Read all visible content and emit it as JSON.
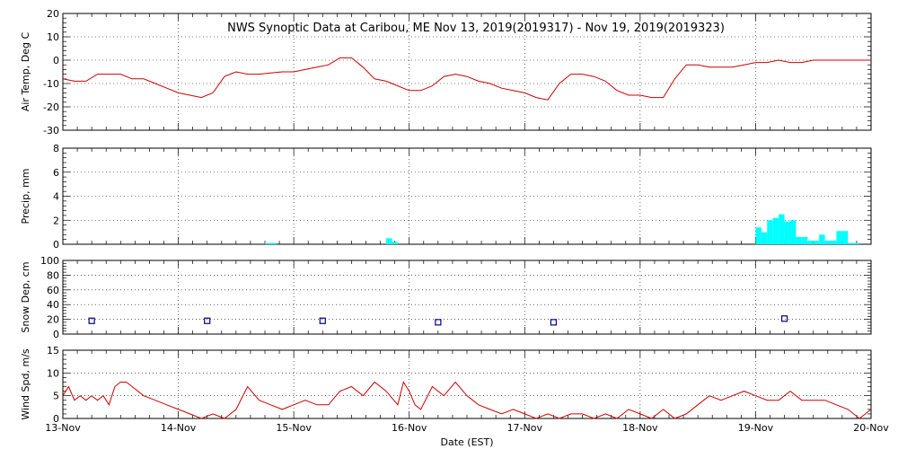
{
  "title": "NWS Synoptic Data at Caribou, ME    Nov 13, 2019(2019317) - Nov 19, 2019(2019323)",
  "xlabel": "Date (EST)",
  "x_ticks": [
    "13-Nov",
    "14-Nov",
    "15-Nov",
    "16-Nov",
    "17-Nov",
    "18-Nov",
    "19-Nov",
    "20-Nov"
  ],
  "colors": {
    "temp": "#cc0000",
    "precip": "#00ffff",
    "snow": "#000080",
    "wind": "#cc0000"
  },
  "chart_data": [
    {
      "type": "line",
      "ylabel": "Air Temp, Deg C",
      "ylim": [
        -30,
        20
      ],
      "y_ticks": [
        "20",
        "10",
        "0",
        "-10",
        "-20",
        "-30"
      ],
      "xlim_days": [
        0,
        7
      ],
      "grid": true,
      "x": [
        0,
        0.1,
        0.2,
        0.3,
        0.4,
        0.5,
        0.6,
        0.7,
        0.8,
        0.9,
        1.0,
        1.1,
        1.2,
        1.3,
        1.4,
        1.5,
        1.6,
        1.7,
        1.8,
        1.9,
        2.0,
        2.1,
        2.2,
        2.3,
        2.4,
        2.5,
        2.6,
        2.7,
        2.8,
        2.9,
        3.0,
        3.1,
        3.2,
        3.3,
        3.4,
        3.5,
        3.6,
        3.7,
        3.8,
        3.9,
        4.0,
        4.1,
        4.2,
        4.3,
        4.4,
        4.5,
        4.6,
        4.7,
        4.8,
        4.9,
        5.0,
        5.1,
        5.2,
        5.3,
        5.4,
        5.5,
        5.6,
        5.7,
        5.8,
        5.9,
        6.0,
        6.1,
        6.2,
        6.3,
        6.4,
        6.5,
        6.6,
        6.7,
        6.8,
        6.9,
        7.0
      ],
      "values": [
        -8,
        -9,
        -9,
        -6,
        -6,
        -6,
        -8,
        -8,
        -10,
        -12,
        -14,
        -15,
        -16,
        -14,
        -7,
        -5,
        -6,
        -6,
        -5.5,
        -5,
        -5,
        -4,
        -3,
        -2,
        1,
        1,
        -3,
        -8,
        -9,
        -11,
        -13,
        -13,
        -11,
        -7,
        -6,
        -7,
        -9,
        -10,
        -12,
        -13,
        -14,
        -16,
        -17,
        -10,
        -6,
        -6,
        -7,
        -9,
        -13,
        -15,
        -15,
        -16,
        -16,
        -8,
        -2,
        -2,
        -3,
        -3,
        -3,
        -2,
        -1,
        -1,
        0,
        -1,
        -1,
        0,
        0,
        0,
        0,
        0,
        0
      ]
    },
    {
      "type": "bar",
      "ylabel": "Precip, mm",
      "ylim": [
        0,
        8
      ],
      "y_ticks": [
        "8",
        "6",
        "4",
        "2",
        "0"
      ],
      "xlim_days": [
        0,
        7
      ],
      "grid": true,
      "x": [
        1.75,
        1.8,
        2.8,
        2.85,
        6.0,
        6.05,
        6.1,
        6.15,
        6.2,
        6.25,
        6.3,
        6.35,
        6.4,
        6.45,
        6.5,
        6.55,
        6.6,
        6.65,
        6.7,
        6.75,
        6.8,
        6.85
      ],
      "values": [
        0.1,
        0.1,
        0.5,
        0.2,
        1.4,
        1.0,
        2.0,
        2.2,
        2.5,
        1.9,
        2.0,
        0.6,
        0.6,
        0.3,
        0.3,
        0.8,
        0.3,
        0.3,
        1.1,
        1.1,
        0.1,
        0.1
      ]
    },
    {
      "type": "scatter",
      "ylabel": "Snow Dep, cm",
      "ylim": [
        0,
        100
      ],
      "y_ticks": [
        "100",
        "80",
        "60",
        "40",
        "20",
        "0"
      ],
      "xlim_days": [
        0,
        7
      ],
      "grid": true,
      "x": [
        0.25,
        1.25,
        2.25,
        3.25,
        4.25,
        6.25
      ],
      "values": [
        18,
        18,
        18,
        16,
        16,
        21
      ]
    },
    {
      "type": "line",
      "ylabel": "Wind Spd, m/s",
      "ylim": [
        0,
        15
      ],
      "y_ticks": [
        "15",
        "10",
        "5",
        "0"
      ],
      "xlim_days": [
        0,
        7
      ],
      "grid": true,
      "x": [
        0,
        0.05,
        0.1,
        0.15,
        0.2,
        0.25,
        0.3,
        0.35,
        0.4,
        0.45,
        0.5,
        0.55,
        0.6,
        0.7,
        0.8,
        0.9,
        1.0,
        1.1,
        1.2,
        1.3,
        1.4,
        1.5,
        1.6,
        1.7,
        1.8,
        1.9,
        2.0,
        2.1,
        2.2,
        2.3,
        2.4,
        2.5,
        2.6,
        2.7,
        2.8,
        2.9,
        2.95,
        3.0,
        3.05,
        3.1,
        3.2,
        3.3,
        3.4,
        3.5,
        3.6,
        3.7,
        3.8,
        3.9,
        4.0,
        4.1,
        4.2,
        4.3,
        4.4,
        4.5,
        4.6,
        4.7,
        4.8,
        4.9,
        5.0,
        5.1,
        5.2,
        5.3,
        5.4,
        5.5,
        5.6,
        5.7,
        5.8,
        5.9,
        6.0,
        6.1,
        6.2,
        6.3,
        6.4,
        6.5,
        6.6,
        6.7,
        6.8,
        6.9,
        7.0
      ],
      "values": [
        5,
        7,
        4,
        5,
        4,
        5,
        4,
        5,
        3,
        7,
        8,
        8,
        7,
        5,
        4,
        3,
        2,
        1,
        0,
        1,
        0,
        2,
        7,
        4,
        3,
        2,
        3,
        4,
        3,
        3,
        6,
        7,
        5,
        8,
        6,
        3,
        8,
        6,
        3,
        2,
        7,
        5,
        8,
        5,
        3,
        2,
        1,
        2,
        1,
        0,
        1,
        0,
        1,
        1,
        0,
        1,
        0,
        2,
        1,
        0,
        2,
        0,
        1,
        3,
        5,
        4,
        5,
        6,
        5,
        4,
        4,
        6,
        4,
        4,
        4,
        3,
        2,
        0,
        2
      ]
    }
  ]
}
